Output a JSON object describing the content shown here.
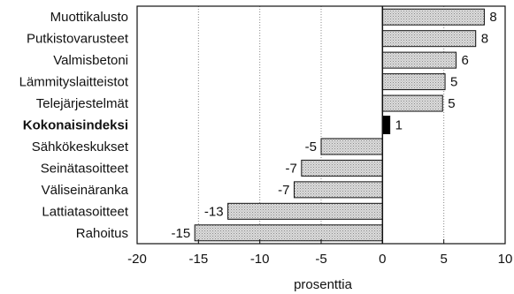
{
  "chart_data": {
    "type": "bar",
    "orientation": "horizontal",
    "categories": [
      "Muottikalusto",
      "Putkistovarusteet",
      "Valmisbetoni",
      "Lämmityslaitteistot",
      "Telejärjestelmät",
      "Kokonaisindeksi",
      "Sähkökeskukset",
      "Seinätasoitteet",
      "Väliseinäranka",
      "Lattiatasoitteet",
      "Rahoitus"
    ],
    "values": [
      8.3,
      7.6,
      6.0,
      5.1,
      4.9,
      0.6,
      -5.0,
      -6.6,
      -7.2,
      -12.6,
      -15.3
    ],
    "value_labels": [
      "8",
      "8",
      "6",
      "5",
      "5",
      "1",
      "-5",
      "-7",
      "-7",
      "-13",
      "-15"
    ],
    "highlight_category": "Kokonaisindeksi",
    "xlabel": "prosenttia",
    "ylabel": "",
    "title": "",
    "xlim": [
      -20,
      10
    ],
    "xticks": [
      -20,
      -15,
      -10,
      -5,
      0,
      5,
      10
    ],
    "grid": "vertical dotted at ±5, ±10, ±15",
    "legend": "none",
    "colors": {
      "bar_fill": "#cfcfcf",
      "bar_stroke": "#111111",
      "highlight_fill": "#000000",
      "grid": "#888888"
    }
  }
}
